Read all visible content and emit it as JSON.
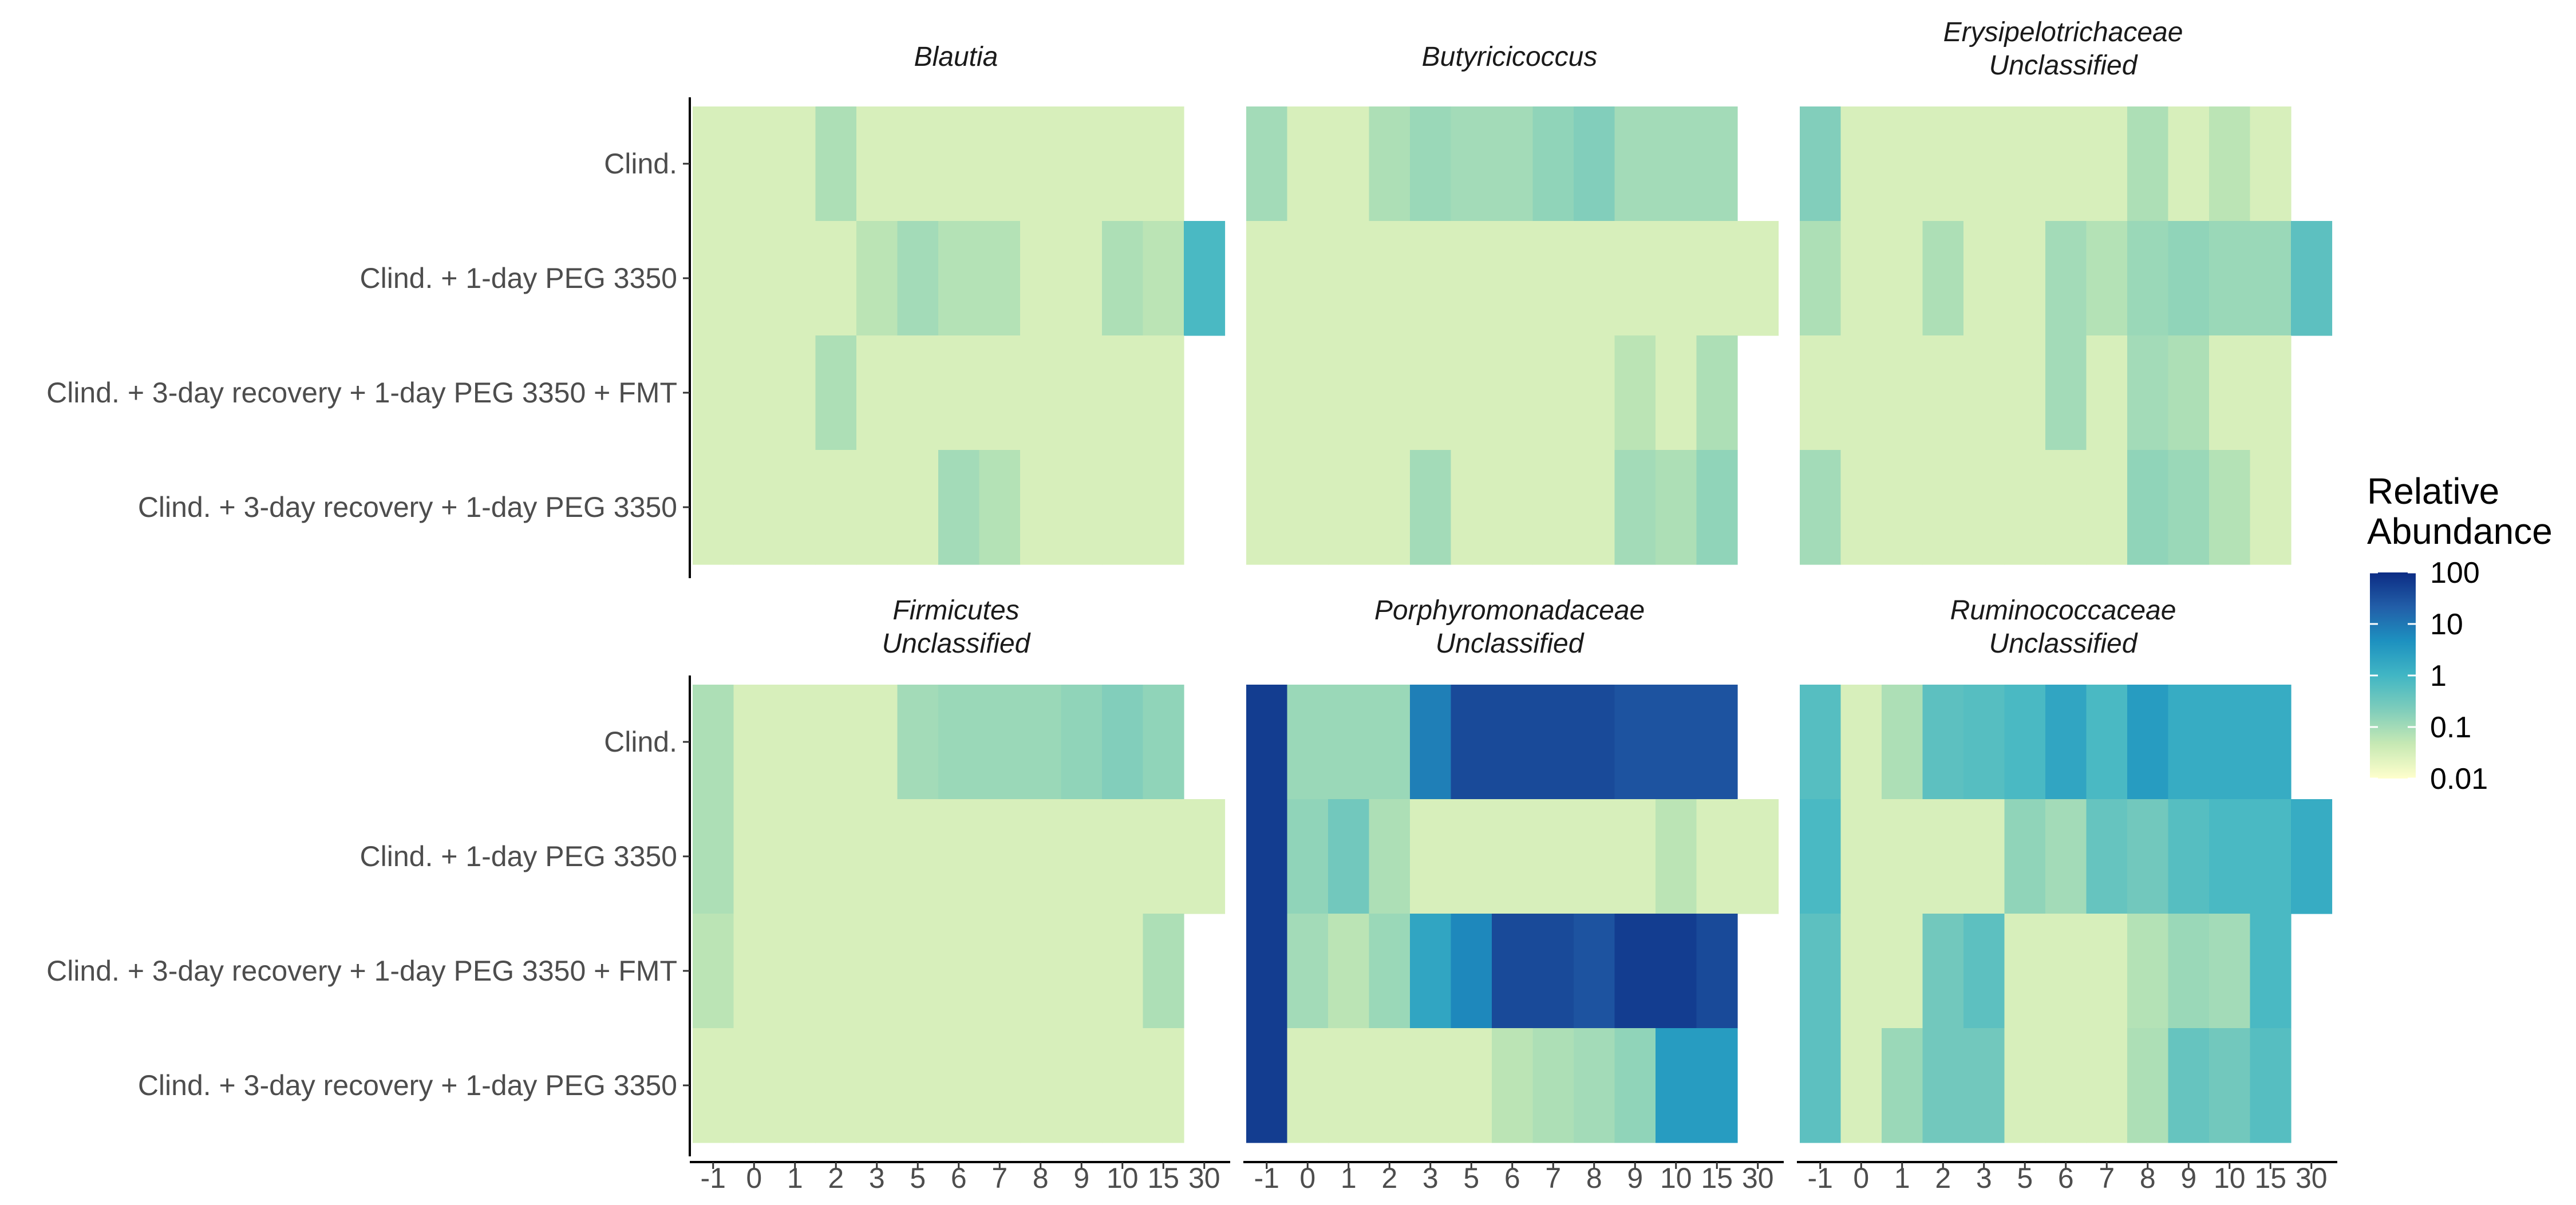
{
  "chart_data": {
    "type": "heatmap",
    "y_categories": [
      "Clind.",
      "Clind. + 1-day PEG 3350",
      "Clind. + 3-day recovery + 1-day PEG 3350 + FMT",
      "Clind. + 3-day recovery + 1-day PEG 3350"
    ],
    "x_categories": [
      "-1",
      "0",
      "1",
      "2",
      "3",
      "5",
      "6",
      "7",
      "8",
      "9",
      "10",
      "15",
      "30"
    ],
    "value_scale": "log10",
    "legend": {
      "title": [
        "Relative",
        "Abundance"
      ],
      "ticks": [
        "100",
        "10",
        "1",
        "0.1",
        "0.01"
      ],
      "range": [
        0.01,
        100
      ],
      "colors": [
        "#ffffcc",
        "#c7e9b4",
        "#7fcdbb",
        "#41b6c4",
        "#1d91c0",
        "#225ea8",
        "#0c2c84"
      ],
      "placement": "right"
    },
    "facets": [
      {
        "title": [
          "Blautia"
        ],
        "values": [
          [
            0.03,
            0.03,
            0.03,
            0.08,
            0.03,
            0.03,
            0.03,
            0.03,
            0.03,
            0.03,
            0.03,
            0.03,
            null
          ],
          [
            0.03,
            0.03,
            0.03,
            0.03,
            0.06,
            0.1,
            0.07,
            0.07,
            0.03,
            0.03,
            0.08,
            0.06,
            0.8
          ],
          [
            0.03,
            0.03,
            0.03,
            0.08,
            0.03,
            0.03,
            0.03,
            0.03,
            0.03,
            0.03,
            0.03,
            0.03,
            null
          ],
          [
            0.03,
            0.03,
            0.03,
            0.03,
            0.03,
            0.03,
            0.1,
            0.07,
            0.03,
            0.03,
            0.03,
            0.03,
            null
          ]
        ]
      },
      {
        "title": [
          "Butyricicoccus"
        ],
        "values": [
          [
            0.1,
            0.03,
            0.03,
            0.08,
            0.12,
            0.1,
            0.1,
            0.15,
            0.2,
            0.1,
            0.1,
            0.1,
            null
          ],
          [
            0.03,
            0.03,
            0.03,
            0.03,
            0.03,
            0.03,
            0.03,
            0.03,
            0.03,
            0.03,
            0.03,
            0.03,
            0.03
          ],
          [
            0.03,
            0.03,
            0.03,
            0.03,
            0.03,
            0.03,
            0.03,
            0.03,
            0.03,
            0.06,
            0.03,
            0.08,
            null
          ],
          [
            0.03,
            0.03,
            0.03,
            0.03,
            0.1,
            0.03,
            0.03,
            0.03,
            0.03,
            0.1,
            0.08,
            0.15,
            null
          ]
        ]
      },
      {
        "title": [
          "Erysipelotrichaceae",
          "Unclassified"
        ],
        "values": [
          [
            0.2,
            0.03,
            0.03,
            0.03,
            0.03,
            0.03,
            0.03,
            0.03,
            0.08,
            0.03,
            0.06,
            0.03,
            null
          ],
          [
            0.08,
            0.03,
            0.03,
            0.08,
            0.03,
            0.03,
            0.1,
            0.07,
            0.12,
            0.15,
            0.12,
            0.12,
            0.5
          ],
          [
            0.03,
            0.03,
            0.03,
            0.03,
            0.03,
            0.03,
            0.1,
            0.03,
            0.1,
            0.08,
            0.03,
            0.03,
            null
          ],
          [
            0.1,
            0.03,
            0.03,
            0.03,
            0.03,
            0.03,
            0.03,
            0.03,
            0.15,
            0.12,
            0.07,
            0.03,
            null
          ]
        ]
      },
      {
        "title": [
          "Firmicutes",
          "Unclassified"
        ],
        "values": [
          [
            0.08,
            0.03,
            0.03,
            0.03,
            0.03,
            0.1,
            0.12,
            0.12,
            0.12,
            0.15,
            0.2,
            0.15,
            null
          ],
          [
            0.08,
            0.03,
            0.03,
            0.03,
            0.03,
            0.03,
            0.03,
            0.03,
            0.03,
            0.03,
            0.03,
            0.03,
            0.03
          ],
          [
            0.06,
            0.03,
            0.03,
            0.03,
            0.03,
            0.03,
            0.03,
            0.03,
            0.03,
            0.03,
            0.03,
            0.08,
            null
          ],
          [
            0.03,
            0.03,
            0.03,
            0.03,
            0.03,
            0.03,
            0.03,
            0.03,
            0.03,
            0.03,
            0.03,
            0.03,
            null
          ]
        ]
      },
      {
        "title": [
          "Porphyromonadaceae",
          "Unclassified"
        ],
        "values": [
          [
            60,
            0.12,
            0.12,
            0.12,
            8,
            40,
            40,
            40,
            40,
            30,
            30,
            30,
            null
          ],
          [
            60,
            0.15,
            0.3,
            0.08,
            0.03,
            0.03,
            0.03,
            0.03,
            0.03,
            0.03,
            0.06,
            0.03,
            0.03
          ],
          [
            60,
            0.1,
            0.06,
            0.12,
            2,
            6,
            40,
            40,
            30,
            60,
            60,
            40,
            null
          ],
          [
            60,
            0.03,
            0.03,
            0.03,
            0.03,
            0.03,
            0.06,
            0.08,
            0.1,
            0.15,
            3,
            3,
            null
          ]
        ]
      },
      {
        "title": [
          "Ruminococcaceae",
          "Unclassified"
        ],
        "values": [
          [
            0.6,
            0.03,
            0.08,
            0.5,
            0.6,
            0.8,
            2,
            0.8,
            3,
            1.5,
            1.5,
            1.5,
            null
          ],
          [
            0.8,
            0.03,
            0.03,
            0.03,
            0.03,
            0.15,
            0.1,
            0.4,
            0.3,
            0.6,
            0.8,
            0.8,
            1.5
          ],
          [
            0.5,
            0.03,
            0.03,
            0.3,
            0.5,
            0.03,
            0.03,
            0.03,
            0.07,
            0.12,
            0.1,
            0.8,
            null
          ],
          [
            0.5,
            0.03,
            0.12,
            0.3,
            0.3,
            0.03,
            0.03,
            0.03,
            0.08,
            0.4,
            0.3,
            0.6,
            null
          ]
        ]
      }
    ]
  }
}
